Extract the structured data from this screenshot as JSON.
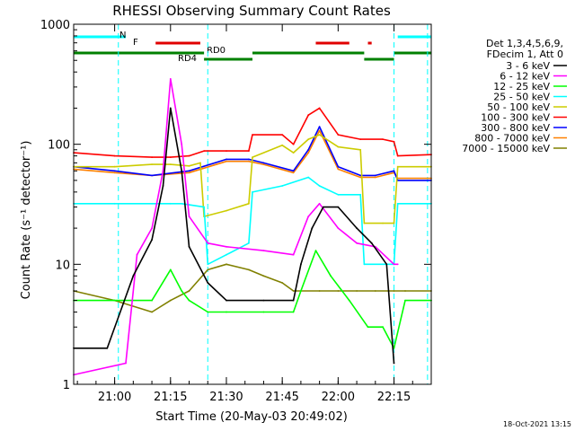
{
  "chart_data": {
    "type": "line",
    "title": "RHESSI Observing Summary Count Rates",
    "xlabel": "Start Time (20-May-03 20:49:02)",
    "ylabel": "Count Rate (s⁻¹ detector⁻¹)",
    "x_unit": "minutes",
    "xlim": [
      "20:49",
      "22:25"
    ],
    "ylim": [
      1,
      1000
    ],
    "y_scale": "log",
    "x_ticks": [
      "21:00",
      "21:15",
      "21:30",
      "21:45",
      "22:00",
      "22:15"
    ],
    "y_ticks": [
      "1",
      "10",
      "100",
      "1000"
    ],
    "legend_header": [
      "Det 1,3,4,5,6,9,",
      "FDecim 1, Att 0"
    ],
    "legend_position": "right",
    "timestamp": "18-Oct-2021 13:15",
    "flags": [
      {
        "label": "N",
        "color": "#00ffff",
        "segments": [
          [
            "20:49",
            "21:03"
          ],
          [
            "22:16",
            "22:25"
          ]
        ]
      },
      {
        "label": "F",
        "color": "#e00000",
        "segments": [
          [
            "21:11",
            "21:23"
          ],
          [
            "21:54",
            "22:03"
          ],
          [
            "22:08",
            "22:09"
          ]
        ]
      },
      {
        "label": "RD0",
        "color": "#008000",
        "segments": [
          [
            "20:49",
            "21:24"
          ],
          [
            "21:37",
            "22:07"
          ],
          [
            "22:15",
            "22:25"
          ]
        ]
      },
      {
        "label": "RD4",
        "color": "#008000",
        "segments": [
          [
            "21:24",
            "21:37"
          ],
          [
            "22:07",
            "22:15"
          ]
        ]
      }
    ],
    "night_markers": [
      "21:01",
      "21:25",
      "22:15",
      "22:24"
    ],
    "series": [
      {
        "name": "3 - 6 keV",
        "color": "#000000",
        "x": [
          "20:49",
          "20:58",
          "21:05",
          "21:10",
          "21:13",
          "21:15",
          "21:18",
          "21:20",
          "21:25",
          "21:30",
          "21:40",
          "21:48",
          "21:50",
          "21:53",
          "21:56",
          "22:00",
          "22:05",
          "22:09",
          "22:13",
          "22:15"
        ],
        "values": [
          2,
          2,
          8,
          16,
          45,
          200,
          60,
          14,
          7,
          5,
          5,
          5,
          10,
          20,
          30,
          30,
          20,
          15,
          10,
          1.5
        ]
      },
      {
        "name": "6 - 12 keV",
        "color": "#ff00ff",
        "x": [
          "20:49",
          "21:03",
          "21:06",
          "21:10",
          "21:13",
          "21:15",
          "21:18",
          "21:20",
          "21:25",
          "21:30",
          "21:40",
          "21:48",
          "21:52",
          "21:55",
          "22:00",
          "22:05",
          "22:10",
          "22:15",
          "22:16"
        ],
        "values": [
          1.2,
          1.5,
          12,
          20,
          60,
          350,
          100,
          25,
          15,
          14,
          13,
          12,
          25,
          32,
          20,
          15,
          14,
          10,
          10
        ]
      },
      {
        "name": "12 - 25 keV",
        "color": "#00ff00",
        "x": [
          "20:49",
          "21:00",
          "21:10",
          "21:15",
          "21:18",
          "21:20",
          "21:25",
          "21:30",
          "21:40",
          "21:48",
          "21:50",
          "21:54",
          "21:58",
          "22:03",
          "22:08",
          "22:12",
          "22:15",
          "22:18",
          "22:25"
        ],
        "values": [
          5,
          5,
          5,
          9,
          6,
          5,
          4,
          4,
          4,
          4,
          6,
          13,
          8,
          5,
          3,
          3,
          2,
          5,
          5
        ]
      },
      {
        "name": "25 - 50 keV",
        "color": "#00ffff",
        "x": [
          "20:49",
          "21:00",
          "21:10",
          "21:15",
          "21:18",
          "21:24",
          "21:25",
          "21:30",
          "21:36",
          "21:37",
          "21:45",
          "21:52",
          "21:55",
          "22:00",
          "22:06",
          "22:07",
          "22:12",
          "22:15",
          "22:16",
          "22:25"
        ],
        "values": [
          32,
          32,
          32,
          32,
          32,
          30,
          10,
          12,
          15,
          40,
          45,
          53,
          45,
          38,
          38,
          10,
          10,
          10,
          32,
          32
        ]
      },
      {
        "name": "50 - 100 keV",
        "color": "#cccc00",
        "x": [
          "20:49",
          "21:00",
          "21:10",
          "21:15",
          "21:20",
          "21:23",
          "21:24",
          "21:30",
          "21:36",
          "21:37",
          "21:45",
          "21:48",
          "21:52",
          "21:55",
          "22:00",
          "22:06",
          "22:07",
          "22:12",
          "22:15",
          "22:16",
          "22:25"
        ],
        "values": [
          65,
          65,
          68,
          68,
          66,
          70,
          25,
          28,
          32,
          78,
          98,
          85,
          110,
          120,
          95,
          90,
          22,
          22,
          22,
          65,
          65
        ]
      },
      {
        "name": "100 - 300 keV",
        "color": "#ff0000",
        "x": [
          "20:49",
          "21:00",
          "21:10",
          "21:15",
          "21:20",
          "21:24",
          "21:30",
          "21:36",
          "21:37",
          "21:45",
          "21:48",
          "21:52",
          "21:55",
          "22:00",
          "22:06",
          "22:12",
          "22:15",
          "22:16",
          "22:25"
        ],
        "values": [
          85,
          80,
          78,
          78,
          80,
          88,
          88,
          88,
          120,
          120,
          100,
          175,
          200,
          120,
          110,
          110,
          105,
          80,
          82
        ]
      },
      {
        "name": "300 - 800 keV",
        "color": "#0000ff",
        "x": [
          "20:49",
          "21:00",
          "21:10",
          "21:20",
          "21:30",
          "21:36",
          "21:40",
          "21:48",
          "21:52",
          "21:55",
          "22:00",
          "22:06",
          "22:10",
          "22:15",
          "22:16",
          "22:25"
        ],
        "values": [
          65,
          60,
          55,
          60,
          75,
          75,
          70,
          60,
          90,
          140,
          65,
          55,
          55,
          60,
          50,
          50
        ]
      },
      {
        "name": "800 - 7000 keV",
        "color": "#ff8000",
        "x": [
          "20:49",
          "21:00",
          "21:10",
          "21:20",
          "21:30",
          "21:36",
          "21:40",
          "21:48",
          "21:52",
          "21:55",
          "22:00",
          "22:06",
          "22:10",
          "22:15",
          "22:16",
          "22:25"
        ],
        "values": [
          62,
          58,
          55,
          58,
          72,
          72,
          68,
          58,
          85,
          130,
          62,
          53,
          53,
          58,
          52,
          52
        ]
      },
      {
        "name": "7000 - 15000 keV",
        "color": "#808000",
        "x": [
          "20:49",
          "21:00",
          "21:10",
          "21:15",
          "21:20",
          "21:25",
          "21:30",
          "21:36",
          "21:40",
          "21:45",
          "21:48",
          "21:55",
          "22:00",
          "22:05",
          "22:10",
          "22:15",
          "22:18",
          "22:25"
        ],
        "values": [
          6,
          5,
          4,
          5,
          6,
          9,
          10,
          9,
          8,
          7,
          6,
          6,
          6,
          6,
          6,
          6,
          6,
          6
        ]
      }
    ]
  }
}
